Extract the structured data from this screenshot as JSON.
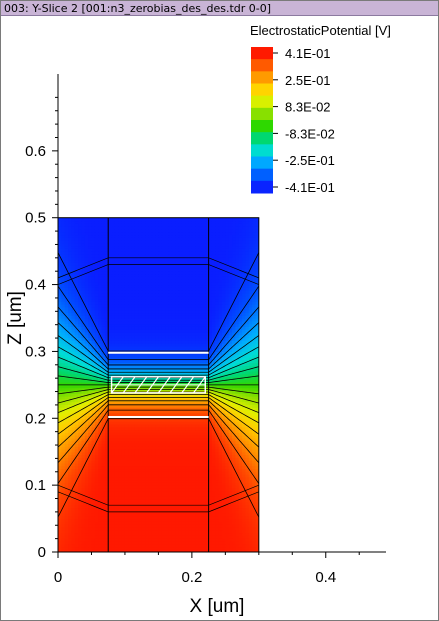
{
  "window": {
    "title": "003: Y-Slice 2 [001:n3_zerobias_des_des.tdr 0-0]"
  },
  "chart_data": {
    "type": "heatmap",
    "title": "",
    "xlabel": "X [um]",
    "ylabel": "Z [um]",
    "xlim": [
      0,
      0.49
    ],
    "ylim": [
      0,
      0.7
    ],
    "x_ticks": [
      0,
      0.2,
      0.4
    ],
    "x_tick_labels": [
      "0",
      "0.2",
      "0.4"
    ],
    "y_ticks": [
      0,
      0.1,
      0.2,
      0.3,
      0.4,
      0.5,
      0.6
    ],
    "y_tick_labels": [
      "0",
      "0.1",
      "0.2",
      "0.3",
      "0.4",
      "0.5",
      "0.6"
    ],
    "domain": {
      "x": [
        0,
        0.3
      ],
      "z": [
        0,
        0.5
      ]
    },
    "region_boundaries_x": [
      0.075,
      0.225
    ],
    "colorbar": {
      "title": "ElectrostaticPotential [V]",
      "min": -0.41,
      "max": 0.41,
      "labels": [
        "4.1E-01",
        "2.5E-01",
        "8.3E-02",
        "-8.3E-02",
        "-2.5E-01",
        "-4.1E-01"
      ],
      "colors": [
        "#ff1a00",
        "#ff5a00",
        "#ff9a00",
        "#ffd400",
        "#d8f000",
        "#88e000",
        "#2ed800",
        "#00d870",
        "#00dcd0",
        "#00a8ff",
        "#0060ff",
        "#0a24ff"
      ]
    },
    "field": {
      "high_value": 0.41,
      "low_value": -0.41,
      "center_z": 0.25,
      "contour_count": 20
    }
  }
}
